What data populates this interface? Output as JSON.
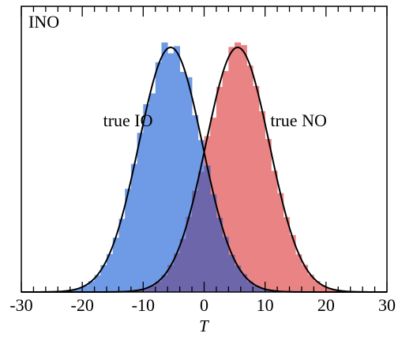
{
  "chart_data": {
    "type": "histogram",
    "panel_label": "INO",
    "xlabel": "T",
    "ylabel": "",
    "xlim": [
      -30,
      30
    ],
    "x_ticks": [
      "-30",
      "-20",
      "-10",
      "0",
      "10",
      "20",
      "30"
    ],
    "x_tick_values": [
      -30,
      -20,
      -10,
      0,
      10,
      20,
      30
    ],
    "y_ticks_shown": false,
    "grid": false,
    "series": [
      {
        "name": "true IO",
        "mean": -5.5,
        "sigma": 5.2,
        "bin_width": 1,
        "color": "#6f9ae6",
        "fit_curve": true
      },
      {
        "name": "true NO",
        "mean": 5.5,
        "sigma": 5.2,
        "bin_width": 1,
        "color": "#e98384",
        "fit_curve": true
      }
    ],
    "overlap_color": "#6d66ab",
    "fit_line_color": "#000000",
    "annotations": [
      {
        "text": "true IO",
        "x": -12.5,
        "y_fraction": 0.58
      },
      {
        "text": "true NO",
        "x": 15.5,
        "y_fraction": 0.58
      }
    ]
  }
}
